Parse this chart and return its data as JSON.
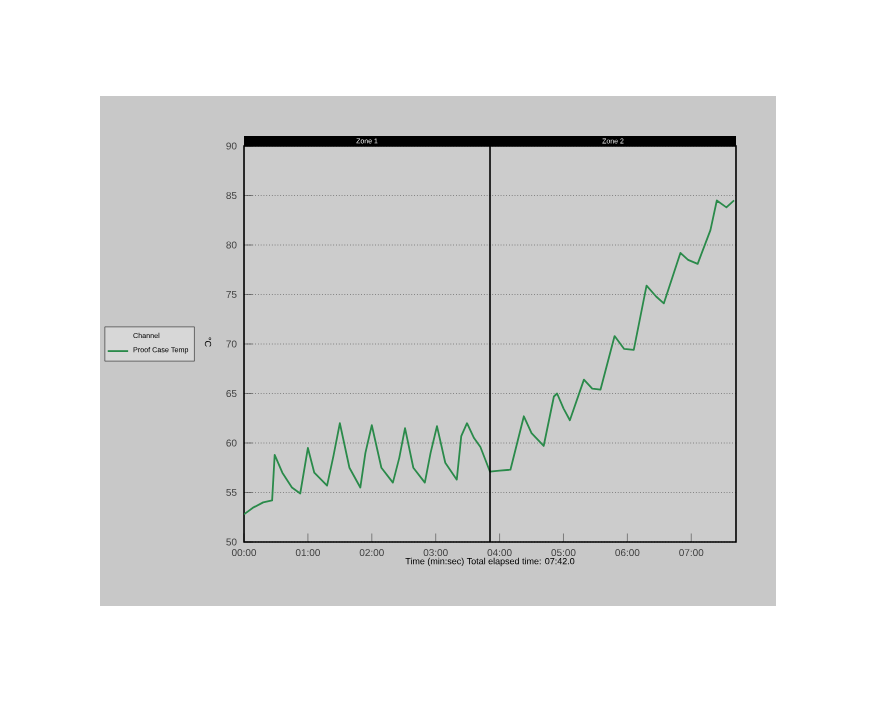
{
  "chart_data": {
    "type": "line",
    "xlabel": "Time (min:sec) Total elapsed time: 07:42.0",
    "ylabel": "°C",
    "legend_title": "Channel",
    "legend": "left",
    "grid": "y",
    "marker": "none",
    "line_style": "solid",
    "xlim": [
      0,
      7.7
    ],
    "ylim": [
      50,
      90
    ],
    "xticks": [
      {
        "value": 0,
        "label": "00:00"
      },
      {
        "value": 1,
        "label": "01:00"
      },
      {
        "value": 2,
        "label": "02:00"
      },
      {
        "value": 3,
        "label": "03:00"
      },
      {
        "value": 4,
        "label": "04:00"
      },
      {
        "value": 5,
        "label": "05:00"
      },
      {
        "value": 6,
        "label": "06:00"
      },
      {
        "value": 7,
        "label": "07:00"
      }
    ],
    "yticks": [
      50,
      55,
      60,
      65,
      70,
      75,
      80,
      85,
      90
    ],
    "ref_lines": [
      {
        "axis": "x",
        "value": 3.85,
        "color": "#000000"
      }
    ],
    "annotations": [
      "Zone 1",
      "Zone 2"
    ],
    "x": [
      0,
      0.15,
      0.3,
      0.44,
      0.48,
      0.6,
      0.75,
      0.88,
      1.0,
      1.1,
      1.3,
      1.4,
      1.5,
      1.65,
      1.82,
      1.9,
      2.0,
      2.15,
      2.33,
      2.43,
      2.52,
      2.65,
      2.83,
      2.92,
      3.02,
      3.15,
      3.33,
      3.4,
      3.49,
      3.6,
      3.7,
      3.85,
      4.0,
      4.17,
      4.38,
      4.5,
      4.69,
      4.85,
      4.9,
      5.0,
      5.1,
      5.32,
      5.45,
      5.58,
      5.8,
      5.95,
      6.1,
      6.3,
      6.45,
      6.57,
      6.83,
      6.95,
      7.1,
      7.3,
      7.4,
      7.55,
      7.67
    ],
    "series": [
      {
        "name": "Proof Case Temp",
        "color": "#2a8a4a",
        "values": [
          52.8,
          53.5,
          54,
          54.2,
          58.8,
          57,
          55.5,
          54.9,
          59.5,
          57,
          55.7,
          58.7,
          62,
          57.5,
          55.5,
          59,
          61.8,
          57.5,
          56,
          58.5,
          61.5,
          57.5,
          56,
          59,
          61.7,
          58,
          56.3,
          60.7,
          62,
          60.5,
          59.6,
          57.1,
          57.2,
          57.3,
          62.7,
          61,
          59.7,
          64.7,
          65,
          63.5,
          62.3,
          66.4,
          65.5,
          65.4,
          70.8,
          69.5,
          69.4,
          75.9,
          74.8,
          74.1,
          79.2,
          78.5,
          78.1,
          81.5,
          84.5,
          83.8,
          84.5
        ]
      }
    ]
  }
}
